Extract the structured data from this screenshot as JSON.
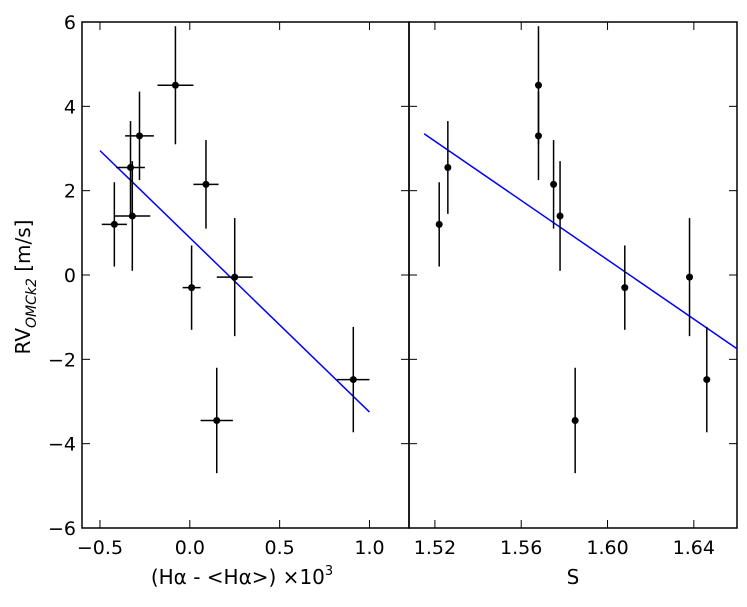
{
  "chart_data": [
    {
      "type": "scatter",
      "xlabel": "(Hα - <Hα>) ×10",
      "xlabel_sup": "3",
      "ylabel": "RV",
      "ylabel_sub": "OMCk2",
      "ylabel_unit": " [m/s]",
      "xlim": [
        -0.6,
        1.22
      ],
      "ylim": [
        -6,
        6
      ],
      "xticks": [
        -0.5,
        0.0,
        0.5,
        1.0
      ],
      "xtick_labels": [
        "−0.5",
        "0.0",
        "0.5",
        "1.0"
      ],
      "yticks": [
        -6,
        -4,
        -2,
        0,
        2,
        4,
        6
      ],
      "ytick_labels": [
        "−6",
        "−4",
        "−2",
        "0",
        "2",
        "4",
        "6"
      ],
      "points": [
        {
          "x": -0.42,
          "y": 1.2,
          "xerr": 0.07,
          "yerr": 1.0
        },
        {
          "x": -0.33,
          "y": 2.55,
          "xerr": 0.08,
          "yerr": 1.1
        },
        {
          "x": -0.32,
          "y": 1.4,
          "xerr": 0.1,
          "yerr": 1.3
        },
        {
          "x": -0.28,
          "y": 3.3,
          "xerr": 0.08,
          "yerr": 1.05
        },
        {
          "x": -0.08,
          "y": 4.5,
          "xerr": 0.1,
          "yerr": 1.4
        },
        {
          "x": 0.09,
          "y": 2.15,
          "xerr": 0.07,
          "yerr": 1.05
        },
        {
          "x": 0.01,
          "y": -0.3,
          "xerr": 0.05,
          "yerr": 1.0
        },
        {
          "x": 0.25,
          "y": -0.05,
          "xerr": 0.1,
          "yerr": 1.4
        },
        {
          "x": 0.15,
          "y": -3.45,
          "xerr": 0.09,
          "yerr": 1.25
        },
        {
          "x": 0.91,
          "y": -2.48,
          "xerr": 0.09,
          "yerr": 1.25
        }
      ],
      "fit_line": {
        "x": [
          -0.5,
          1.0
        ],
        "y": [
          2.95,
          -3.25
        ],
        "color": "#0000ff"
      },
      "marker_color": "#000000",
      "grid": false
    },
    {
      "type": "scatter",
      "xlabel": "S",
      "xlim": [
        1.508,
        1.66
      ],
      "ylim": [
        -6,
        6
      ],
      "xticks": [
        1.52,
        1.56,
        1.6,
        1.64
      ],
      "xtick_labels": [
        "1.52",
        "1.56",
        "1.60",
        "1.64"
      ],
      "yticks": [
        -6,
        -4,
        -2,
        0,
        2,
        4,
        6
      ],
      "points": [
        {
          "x": 1.522,
          "y": 1.2,
          "yerr": 1.0
        },
        {
          "x": 1.526,
          "y": 2.55,
          "yerr": 1.1
        },
        {
          "x": 1.568,
          "y": 4.5,
          "yerr": 1.4
        },
        {
          "x": 1.568,
          "y": 3.3,
          "yerr": 1.05
        },
        {
          "x": 1.575,
          "y": 2.15,
          "yerr": 1.05
        },
        {
          "x": 1.578,
          "y": 1.4,
          "yerr": 1.3
        },
        {
          "x": 1.585,
          "y": -3.45,
          "yerr": 1.25
        },
        {
          "x": 1.608,
          "y": -0.3,
          "yerr": 1.0
        },
        {
          "x": 1.638,
          "y": -0.05,
          "yerr": 1.4
        },
        {
          "x": 1.646,
          "y": -2.48,
          "yerr": 1.25
        }
      ],
      "fit_line": {
        "x": [
          1.515,
          1.66
        ],
        "y": [
          3.35,
          -1.75
        ],
        "color": "#0000ff"
      },
      "marker_color": "#000000",
      "grid": false
    }
  ]
}
